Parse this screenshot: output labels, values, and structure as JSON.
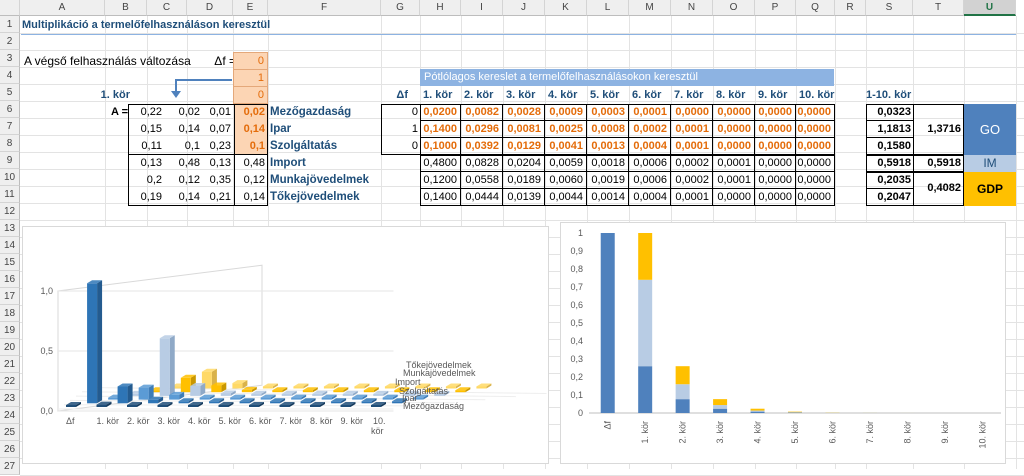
{
  "columns": [
    "A",
    "B",
    "C",
    "D",
    "E",
    "F",
    "G",
    "H",
    "I",
    "J",
    "K",
    "L",
    "M",
    "N",
    "O",
    "P",
    "Q",
    "R",
    "S",
    "T",
    "U"
  ],
  "rows": [
    "1",
    "2",
    "3",
    "4",
    "5",
    "6",
    "7",
    "8",
    "9",
    "10",
    "11",
    "12",
    "13",
    "14",
    "15",
    "16",
    "17",
    "18",
    "19",
    "20",
    "21",
    "22",
    "23",
    "24",
    "25",
    "26",
    "27"
  ],
  "title": "Multiplikáció a termelőfelhasználáson keresztül",
  "delta_label": "A végső felhasználás változása",
  "delta_sym": "Δf =",
  "delta_values": [
    "0",
    "1",
    "0"
  ],
  "kor1": "1. kör",
  "a_label": "A =",
  "matrix": [
    [
      "0,22",
      "0,02",
      "0,01",
      "0,02"
    ],
    [
      "0,15",
      "0,14",
      "0,07",
      "0,14"
    ],
    [
      "0,11",
      "0,1",
      "0,23",
      "0,1"
    ],
    [
      "0,13",
      "0,48",
      "0,13",
      "0,48"
    ],
    [
      "0,2",
      "0,12",
      "0,35",
      "0,12"
    ],
    [
      "0,19",
      "0,14",
      "0,21",
      "0,14"
    ]
  ],
  "row_labels": [
    "Mezőgazdaság",
    "Ipar",
    "Szolgáltatás",
    "Import",
    "Munkajövedelmek",
    "Tőkejövedelmek"
  ],
  "df_header": "Δf",
  "df_values": [
    "0",
    "1",
    "0"
  ],
  "banner": "Pótlólagos kereslet a termelőfelhasználásokon keresztül",
  "round_headers": [
    "1. kör",
    "2. kör",
    "3. kör",
    "4. kör",
    "5. kör",
    "6. kör",
    "7. kör",
    "8. kör",
    "9. kör",
    "10. kör"
  ],
  "rounds": [
    [
      "0,0200",
      "0,0082",
      "0,0028",
      "0,0009",
      "0,0003",
      "0,0001",
      "0,0000",
      "0,0000",
      "0,0000",
      "0,0000"
    ],
    [
      "0,1400",
      "0,0296",
      "0,0081",
      "0,0025",
      "0,0008",
      "0,0002",
      "0,0001",
      "0,0000",
      "0,0000",
      "0,0000"
    ],
    [
      "0,1000",
      "0,0392",
      "0,0129",
      "0,0041",
      "0,0013",
      "0,0004",
      "0,0001",
      "0,0000",
      "0,0000",
      "0,0000"
    ],
    [
      "0,4800",
      "0,0828",
      "0,0204",
      "0,0059",
      "0,0018",
      "0,0006",
      "0,0002",
      "0,0001",
      "0,0000",
      "0,0000"
    ],
    [
      "0,1200",
      "0,0558",
      "0,0189",
      "0,0060",
      "0,0019",
      "0,0006",
      "0,0002",
      "0,0001",
      "0,0000",
      "0,0000"
    ],
    [
      "0,1400",
      "0,0444",
      "0,0139",
      "0,0044",
      "0,0014",
      "0,0004",
      "0,0001",
      "0,0000",
      "0,0000",
      "0,0000"
    ]
  ],
  "total_header": "1-10. kör",
  "totals": [
    "0,0323",
    "1,1813",
    "0,1580",
    "0,5918",
    "0,2035",
    "0,2047"
  ],
  "sum_go": "1,3716",
  "sum_im": "0,5918",
  "sum_gdp": "0,4082",
  "legend_go": "GO",
  "legend_im": "IM",
  "legend_gdp": "GDP",
  "colors": {
    "go": "#4f81bd",
    "im": "#b8cce4",
    "gdp": "#ffc000",
    "ipar": "#b8cce4",
    "orange_fill": "#fcd5b4",
    "banner": "#8db3e2"
  },
  "chart_data": [
    {
      "type": "bar",
      "title": "",
      "categories": [
        "Δf",
        "1. kör",
        "2. kör",
        "3. kör",
        "4. kör",
        "5. kör",
        "6. kör",
        "7. kör",
        "8. kör",
        "9. kör",
        "10. kör"
      ],
      "series": [
        {
          "name": "Mezőgazdaság",
          "values": [
            0,
            0.02,
            0.0082,
            0.0028,
            0.0009,
            0.0003,
            0.0001,
            0,
            0,
            0,
            0
          ]
        },
        {
          "name": "Ipar",
          "values": [
            1,
            0.14,
            0.0296,
            0.0081,
            0.0025,
            0.0008,
            0.0002,
            0.0001,
            0,
            0,
            0
          ]
        },
        {
          "name": "Szolgáltatás",
          "values": [
            0,
            0.1,
            0.0392,
            0.0129,
            0.0041,
            0.0013,
            0.0004,
            0.0001,
            0,
            0,
            0
          ]
        },
        {
          "name": "Import",
          "values": [
            0,
            0.48,
            0.0828,
            0.0204,
            0.0059,
            0.0018,
            0.0006,
            0.0002,
            0.0001,
            0,
            0
          ]
        },
        {
          "name": "Munkajövedelmek",
          "values": [
            0,
            0.12,
            0.0558,
            0.0189,
            0.006,
            0.0019,
            0.0006,
            0.0002,
            0.0001,
            0,
            0
          ]
        },
        {
          "name": "Tőkejövedelmek",
          "values": [
            0,
            0.14,
            0.0444,
            0.0139,
            0.0044,
            0.0014,
            0.0004,
            0.0001,
            0,
            0,
            0
          ]
        }
      ],
      "yticks": [
        "0,0",
        "0,5",
        "1,0"
      ],
      "ylim": [
        0,
        1
      ]
    },
    {
      "type": "bar",
      "stacked": true,
      "categories": [
        "Δf",
        "1. kör",
        "2. kör",
        "3. kör",
        "4. kör",
        "5. kör",
        "6. kör",
        "7. kör",
        "8. kör",
        "9. kör",
        "10. kör"
      ],
      "series": [
        {
          "name": "GO",
          "values": [
            1,
            0.26,
            0.077,
            0.0238,
            0.0075,
            0.0024,
            0.0007,
            0.0002,
            0,
            0,
            0
          ]
        },
        {
          "name": "IM",
          "values": [
            0,
            0.48,
            0.0828,
            0.0204,
            0.0059,
            0.0018,
            0.0006,
            0.0002,
            0.0001,
            0,
            0
          ]
        },
        {
          "name": "GDP",
          "values": [
            0,
            0.26,
            0.1002,
            0.0328,
            0.0104,
            0.0033,
            0.001,
            0.0003,
            0.0001,
            0,
            0
          ]
        }
      ],
      "yticks": [
        "0",
        "0,1",
        "0,2",
        "0,3",
        "0,4",
        "0,5",
        "0,6",
        "0,7",
        "0,8",
        "0,9",
        "1"
      ],
      "ylim": [
        0,
        1
      ]
    }
  ]
}
